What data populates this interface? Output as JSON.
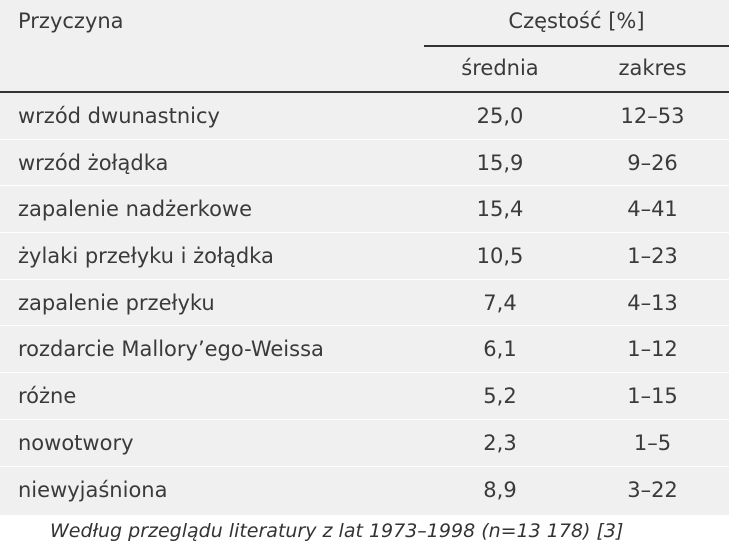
{
  "table": {
    "header": {
      "cause": "Przyczyna",
      "frequency": "Częstość [%]",
      "mean": "średnia",
      "range": "zakres"
    },
    "rows": [
      {
        "cause": "wrzód dwunastnicy",
        "mean": "25,0",
        "range": "12–53"
      },
      {
        "cause": "wrzód żołądka",
        "mean": "15,9",
        "range": "9–26"
      },
      {
        "cause": "zapalenie nadżerkowe",
        "mean": "15,4",
        "range": "4–41"
      },
      {
        "cause": "żylaki przełyku i żołądka",
        "mean": "10,5",
        "range": "1–23"
      },
      {
        "cause": "zapalenie przełyku",
        "mean": "7,4",
        "range": "4–13"
      },
      {
        "cause": "rozdarcie Mallory’ego-Weissa",
        "mean": "6,1",
        "range": "1–12"
      },
      {
        "cause": "różne",
        "mean": "5,2",
        "range": "1–15"
      },
      {
        "cause": "nowotwory",
        "mean": "2,3",
        "range": "1–5"
      },
      {
        "cause": "niewyjaśniona",
        "mean": "8,9",
        "range": "3–22"
      }
    ]
  },
  "footnote": "Według przeglądu literatury z lat 1973–1998 (n=13 178) [3]"
}
